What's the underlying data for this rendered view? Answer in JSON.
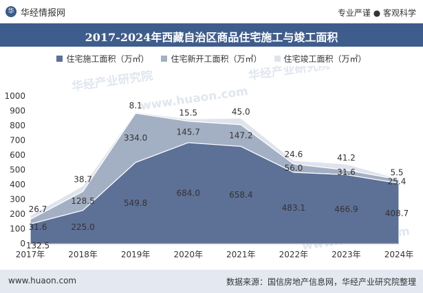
{
  "header": {
    "brand": "华经情报网",
    "logo_glyph": "华",
    "tagline": "专业严谨 ● 客观科学"
  },
  "chart_data": {
    "type": "area",
    "title": "2017-2024年西藏自治区商品住宅施工与竣工面积",
    "categories": [
      "2017年",
      "2018年",
      "2019年",
      "2020年",
      "2021年",
      "2022年",
      "2023年",
      "2024年"
    ],
    "series": [
      {
        "name": "住宅施工面积（万㎡）",
        "values": [
          132.5,
          225.0,
          549.8,
          684.0,
          658.4,
          483.1,
          466.9,
          408.7
        ],
        "color": "#5d7096"
      },
      {
        "name": "住宅新开工面积（万㎡）",
        "values": [
          31.6,
          128.5,
          334.0,
          145.7,
          147.2,
          56.0,
          31.6,
          25.4
        ],
        "color": "#a3b0c4"
      },
      {
        "name": "住宅竣工面积（万㎡）",
        "values": [
          26.7,
          38.7,
          8.1,
          15.5,
          45.0,
          24.6,
          41.2,
          5.5
        ],
        "color": "#dfe4ec"
      }
    ],
    "stacked": true,
    "ylim": [
      0,
      1000
    ],
    "yticks": [
      0,
      100,
      200,
      300,
      400,
      500,
      600,
      700,
      800,
      900,
      1000
    ],
    "xlabel": "",
    "ylabel": "",
    "legend": "top-center"
  },
  "watermarks": [
    "华经产业研究院",
    "www.huaon.com",
    "华经产业研究院",
    "www.huaon.com"
  ],
  "footer": {
    "site": "www.huaon.com",
    "source": "数据来源：国信房地产信息网，华经产业研究院整理"
  }
}
